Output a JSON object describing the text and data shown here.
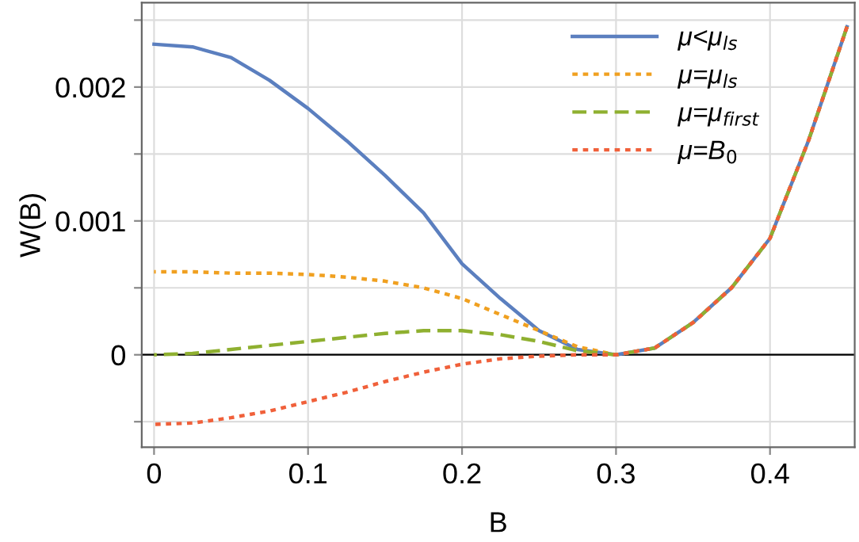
{
  "chart_data": {
    "type": "line",
    "xlabel": "B",
    "ylabel": "W(B)",
    "x": [
      0,
      0.025,
      0.05,
      0.075,
      0.1,
      0.125,
      0.15,
      0.175,
      0.2,
      0.225,
      0.25,
      0.275,
      0.3,
      0.325,
      0.35,
      0.375,
      0.4,
      0.425,
      0.45
    ],
    "series": [
      {
        "name": "μ<μ$_{ls}$",
        "color": "#5b7fbf",
        "line_style": "solid",
        "values": [
          0.00232,
          0.0023,
          0.00222,
          0.00205,
          0.00184,
          0.0016,
          0.00134,
          0.00106,
          0.00068,
          0.00042,
          0.00018,
          4e-05,
          0,
          5e-05,
          0.00024,
          0.0005,
          0.00087,
          0.0016,
          0.00245
        ]
      },
      {
        "name": "μ=μ$_{ls}$",
        "color": "#f0a020",
        "line_style": "dotted",
        "values": [
          0.00062,
          0.00062,
          0.00061,
          0.00061,
          0.0006,
          0.00058,
          0.00055,
          0.0005,
          0.00042,
          0.0003,
          0.00018,
          6e-05,
          0,
          5e-05,
          0.00024,
          0.0005,
          0.00087,
          0.0016,
          0.00245
        ]
      },
      {
        "name": "μ=μ$_{first}$",
        "color": "#8fb030",
        "line_style": "dashed",
        "values": [
          0,
          1e-05,
          4e-05,
          7e-05,
          0.0001,
          0.00013,
          0.00016,
          0.00018,
          0.00018,
          0.00015,
          0.0001,
          3e-05,
          0,
          5e-05,
          0.00024,
          0.0005,
          0.00087,
          0.0016,
          0.00245
        ]
      },
      {
        "name": "μ=B$_{0}$",
        "color": "#f0603a",
        "line_style": "dotted",
        "values": [
          -0.00052,
          -0.00051,
          -0.00047,
          -0.00042,
          -0.00035,
          -0.00028,
          -0.0002,
          -0.00013,
          -7e-05,
          -3e-05,
          -1e-05,
          0,
          0,
          5e-05,
          0.00024,
          0.0005,
          0.00087,
          0.0016,
          0.00245
        ]
      }
    ],
    "xlim": [
      -0.008,
      0.455
    ],
    "ylim": [
      -0.00069,
      0.00263
    ],
    "xticks": [
      0,
      0.1,
      0.2,
      0.3,
      0.4
    ],
    "yticks": [
      {
        "value": -0.0005,
        "label": null
      },
      0,
      {
        "value": 0.0005,
        "label": null
      },
      {
        "value": 0.001,
        "label": "0.001"
      },
      {
        "value": 0.0015,
        "label": null
      },
      {
        "value": 0.002,
        "label": "0.002"
      },
      {
        "value": 0.0025,
        "label": null
      }
    ],
    "ref_lines": [
      {
        "axis": "y",
        "value": 0,
        "color": "#000000"
      }
    ],
    "grid": true,
    "legend": "top right"
  }
}
